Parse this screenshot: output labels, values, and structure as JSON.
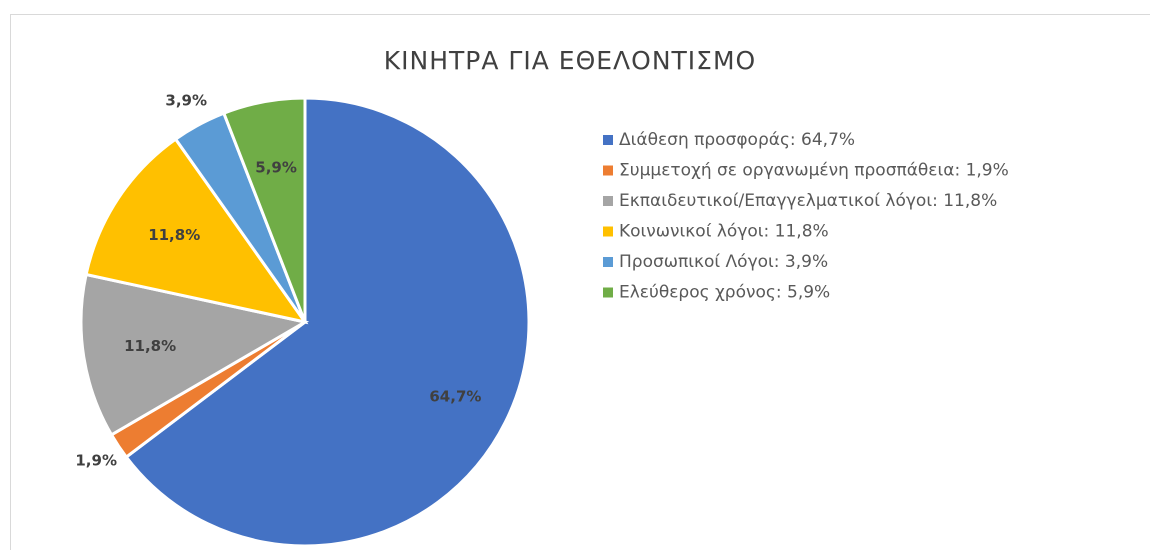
{
  "chart_data": {
    "type": "pie",
    "title": "ΚΙΝΗΤΡΑ ΓΙΑ ΕΘΕΛΟΝΤΙΣΜΟ",
    "categories": [
      "Διάθεση προσφοράς: 64,7%",
      "Συμμετοχή σε οργανωμένη προσπάθεια: 1,9%",
      "Εκπαιδευτικοί/Επαγγελματικοί λόγοι: 11,8%",
      "Κοινωνικοί λόγοι: 11,8%",
      "Προσωπικοί Λόγοι: 3,9%",
      "Ελεύθερος χρόνος: 5,9%"
    ],
    "values": [
      64.7,
      1.9,
      11.8,
      11.8,
      3.9,
      5.9
    ],
    "value_labels": [
      "64,7%",
      "1,9%",
      "11,8%",
      "11,8%",
      "3,9%",
      "5,9%"
    ],
    "colors": [
      "#4472c4",
      "#ed7d31",
      "#a5a5a5",
      "#ffc000",
      "#5b9bd5",
      "#70ad47"
    ],
    "legend": "right"
  }
}
